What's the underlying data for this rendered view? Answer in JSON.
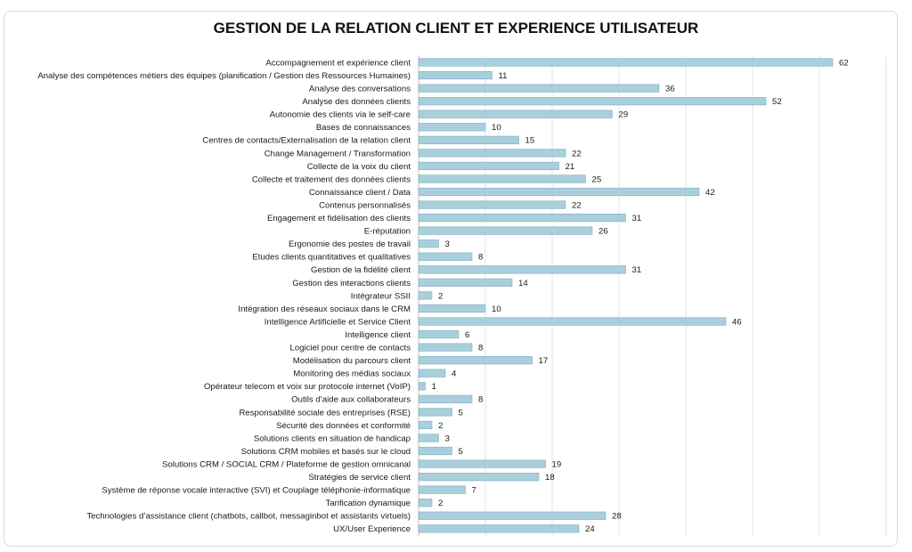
{
  "chart_data": {
    "type": "bar",
    "orientation": "horizontal",
    "title": "GESTION DE LA RELATION CLIENT ET EXPERIENCE UTILISATEUR",
    "xlabel": "",
    "ylabel": "",
    "xlim": [
      0,
      70
    ],
    "grid": true,
    "bar_color": "#a9cedc",
    "bar_border_color": "#7fb0c4",
    "categories": [
      "Accompagnement et expérience client",
      "Analyse des compétences métiers des équipes (planification / Gestion des Ressources Humaines)",
      "Analyse des conversations",
      "Analyse des données clients",
      "Autonomie des clients via le self-care",
      "Bases de connaissances",
      "Centres de contacts/Externalisation de la relation client",
      "Change Management / Transformation",
      "Collecte de la voix du client",
      "Collecte et traitement des données clients",
      "Connaissance client / Data",
      "Contenus personnalisés",
      "Engagement et fidélisation des clients",
      "E-réputation",
      "Ergonomie des postes de travail",
      "Etudes clients quantitatives et qualitatives",
      "Gestion de la fidélité client",
      "Gestion des interactions clients",
      "Intégrateur SSII",
      "Intégration des réseaux sociaux dans le CRM",
      "Intelligence Artificielle et Service Client",
      "Intelligence client",
      "Logiciel pour centre de contacts",
      "Modélisation du parcours client",
      "Monitoring des médias sociaux",
      "Opérateur telecom et voix sur protocole internet (VoIP)",
      "Outils d’aide aux collaborateurs",
      "Responsabilité sociale des entreprises (RSE)",
      "Sécurité des données et conformité",
      "Solutions clients en situation de handicap",
      "Solutions CRM mobiles et basés sur le cloud",
      "Solutions CRM / SOCIAL CRM / Plateforme de gestion omnicanal",
      "Stratégies de service client",
      "Système de réponse vocale interactive (SVI) et Couplage téléphonie-informatique",
      "Tarification dynamique",
      "Technologies d’assistance client (chatbots, callbot, messaginbot et assistants virtuels)",
      "UX/User Experience"
    ],
    "values": [
      62,
      11,
      36,
      52,
      29,
      10,
      15,
      22,
      21,
      25,
      42,
      22,
      31,
      26,
      3,
      8,
      31,
      14,
      2,
      10,
      46,
      6,
      8,
      17,
      4,
      1,
      8,
      5,
      2,
      3,
      5,
      19,
      18,
      7,
      2,
      28,
      24
    ]
  }
}
